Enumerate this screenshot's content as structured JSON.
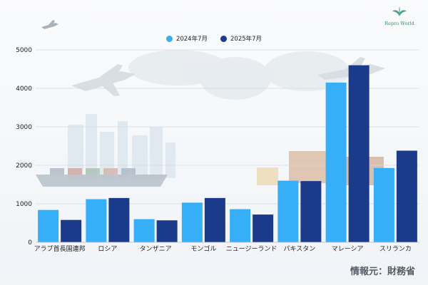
{
  "logo": {
    "text": "Repro World"
  },
  "source": "情報元：財務省",
  "colors": {
    "series_2024": "#36aef8",
    "series_2025": "#1b3a8a"
  },
  "chart_data": {
    "type": "bar",
    "categories": [
      "アラブ首長国連邦",
      "ロシア",
      "タンザニア",
      "モンゴル",
      "ニュージーランド",
      "パキスタン",
      "マレーシア",
      "スリランカ"
    ],
    "series": [
      {
        "name": "2024年7月",
        "values": [
          840,
          1120,
          600,
          1030,
          860,
          1600,
          4150,
          1930
        ]
      },
      {
        "name": "2025年7月",
        "values": [
          580,
          1150,
          570,
          1150,
          720,
          1590,
          4600,
          2380
        ]
      }
    ],
    "ylim": [
      0,
      5000
    ],
    "yticks": [
      "0",
      "1000",
      "2000",
      "3000",
      "4000",
      "5000"
    ],
    "grid": true,
    "legend_position": "top-center"
  }
}
